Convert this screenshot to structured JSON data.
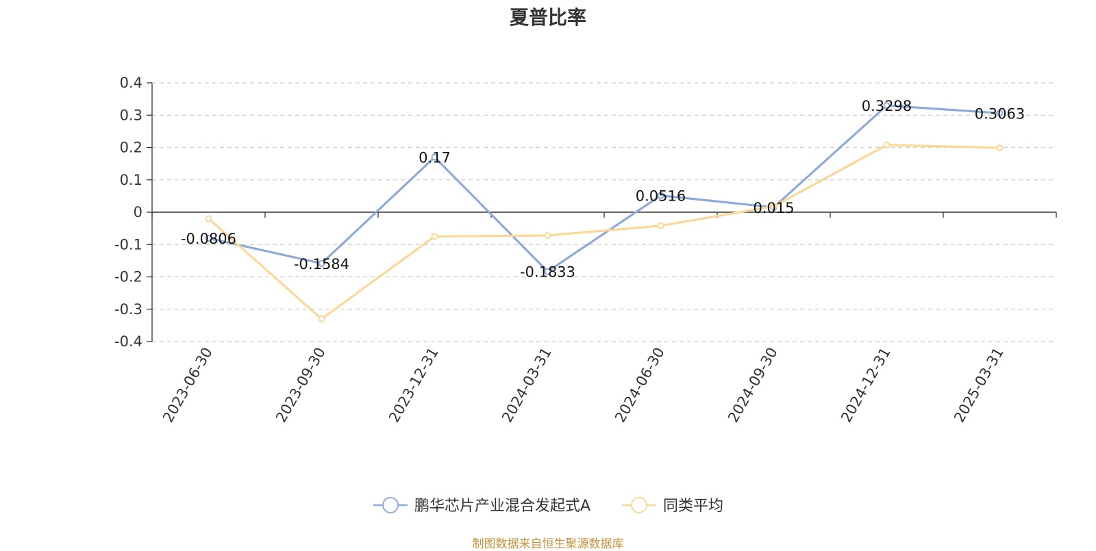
{
  "chart_data": {
    "type": "line",
    "title": "夏普比率",
    "categories": [
      "2023-06-30",
      "2023-09-30",
      "2023-12-31",
      "2024-03-31",
      "2024-06-30",
      "2024-09-30",
      "2024-12-31",
      "2025-03-31"
    ],
    "series": [
      {
        "name": "鹏华芯片产业混合发起式A",
        "color": "#8eaad8",
        "values": [
          -0.0806,
          -0.1584,
          0.17,
          -0.1833,
          0.0516,
          0.015,
          0.3298,
          0.3063
        ],
        "labels": [
          "-0.0806",
          "-0.1584",
          "0.17",
          "-0.1833",
          "0.0516",
          "0.015",
          "0.3298",
          "0.3063"
        ]
      },
      {
        "name": "同类平均",
        "color": "#fad896",
        "values": [
          -0.02,
          -0.33,
          -0.075,
          -0.072,
          -0.042,
          0.018,
          0.208,
          0.199
        ]
      }
    ],
    "yticks": [
      "0.4",
      "0.3",
      "0.2",
      "0.1",
      "0",
      "-0.1",
      "-0.2",
      "-0.3",
      "-0.4"
    ],
    "ylim": [
      -0.4,
      0.4
    ],
    "grid": true,
    "legend_position": "bottom-center"
  },
  "source_note": "制图数据来自恒生聚源数据库"
}
